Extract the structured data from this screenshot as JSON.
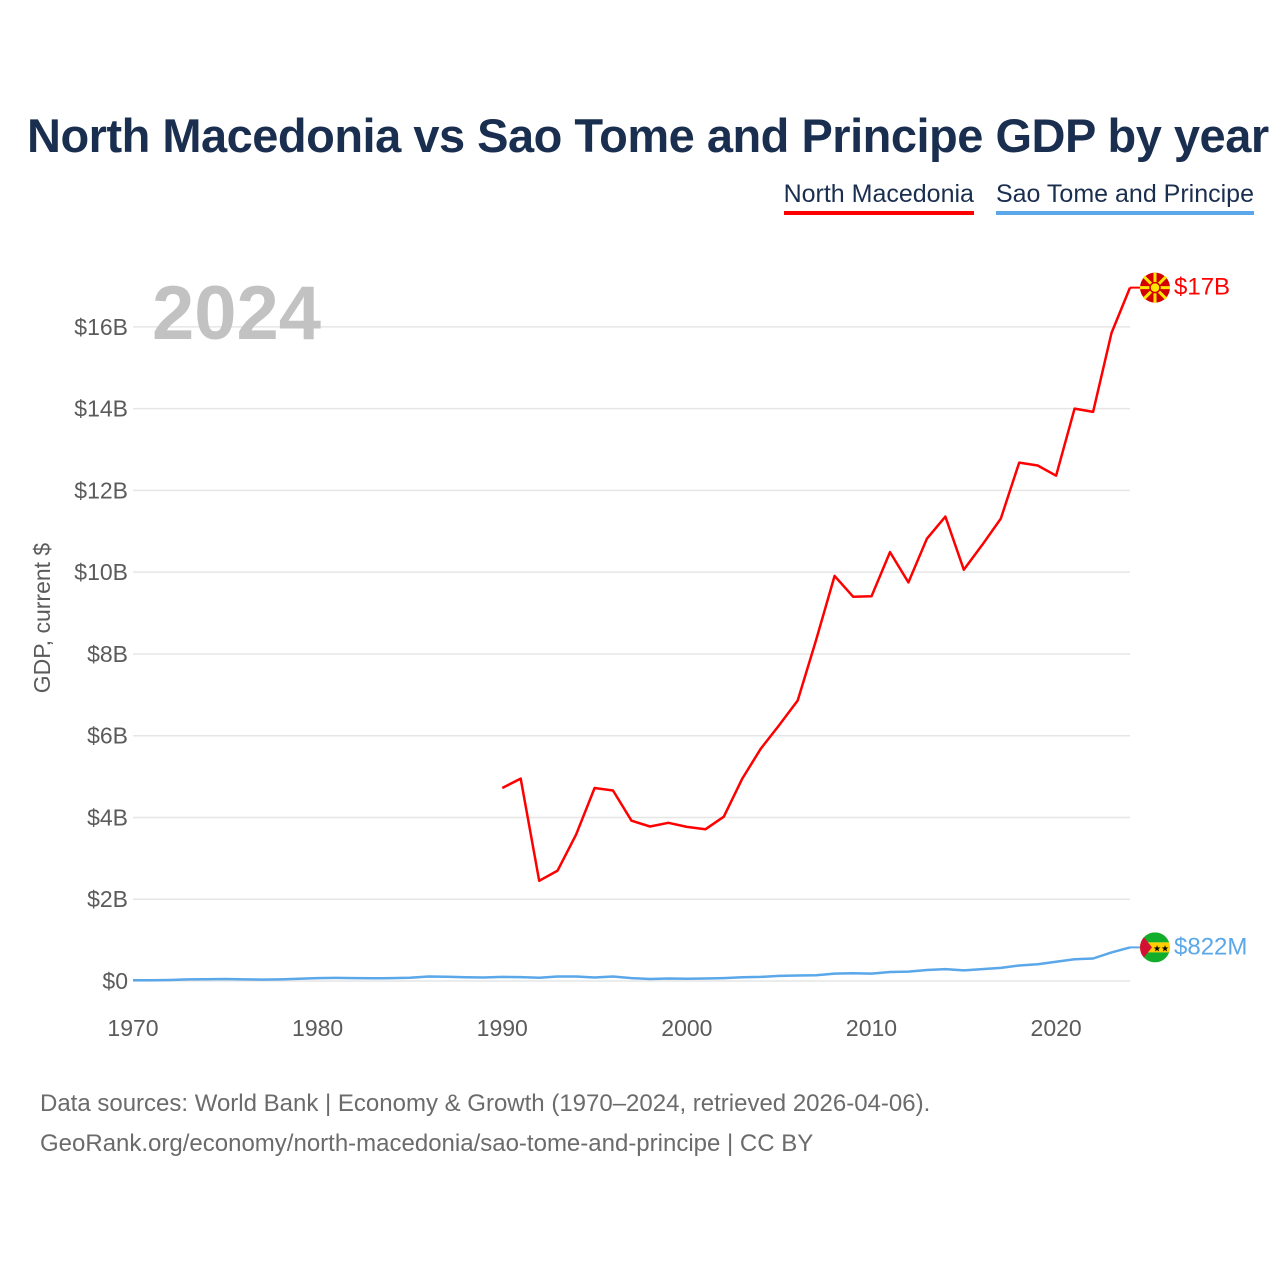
{
  "title": "North Macedonia vs Sao Tome and Principe GDP by year",
  "legend": [
    {
      "name": "North Macedonia",
      "color": "#ff0000"
    },
    {
      "name": "Sao Tome and Principe",
      "color": "#5aa7e9"
    }
  ],
  "year_watermark": "2024",
  "end_labels": {
    "north_macedonia": "$17B",
    "sao_tome": "$822M"
  },
  "source_line1": "Data sources: World Bank | Economy & Growth (1970–2024, retrieved 2026-04-06).",
  "source_line2": "GeoRank.org/economy/north-macedonia/sao-tome-and-principe | CC BY",
  "chart_data": {
    "type": "line",
    "title": "North Macedonia vs Sao Tome and Principe GDP by year",
    "xlabel": "",
    "ylabel": "GDP, current $",
    "xlim": [
      1970,
      2024
    ],
    "ylim": [
      0,
      17
    ],
    "y_unit": "billions USD",
    "x_ticks": [
      1970,
      1980,
      1990,
      2000,
      2010,
      2020
    ],
    "y_ticks": [
      0,
      2,
      4,
      6,
      8,
      10,
      12,
      14,
      16
    ],
    "y_tick_labels": [
      "$0",
      "$2B",
      "$4B",
      "$6B",
      "$8B",
      "$10B",
      "$12B",
      "$14B",
      "$16B"
    ],
    "grid": true,
    "legend_position": "top-right",
    "series": [
      {
        "name": "North Macedonia",
        "color": "#ff0000",
        "x": [
          1990,
          1991,
          1992,
          1993,
          1994,
          1995,
          1996,
          1997,
          1998,
          1999,
          2000,
          2001,
          2002,
          2003,
          2004,
          2005,
          2006,
          2007,
          2008,
          2009,
          2010,
          2011,
          2012,
          2013,
          2014,
          2015,
          2016,
          2017,
          2018,
          2019,
          2020,
          2021,
          2022,
          2023,
          2024
        ],
        "values": [
          4.72,
          4.95,
          2.45,
          2.7,
          3.58,
          4.72,
          4.66,
          3.92,
          3.78,
          3.87,
          3.77,
          3.71,
          4.02,
          4.95,
          5.68,
          6.26,
          6.86,
          8.34,
          9.91,
          9.4,
          9.41,
          10.49,
          9.75,
          10.82,
          11.36,
          10.06,
          10.67,
          11.31,
          12.68,
          12.61,
          12.36,
          14.0,
          13.92,
          15.85,
          16.96
        ]
      },
      {
        "name": "Sao Tome and Principe",
        "color": "#5aa7e9",
        "x": [
          1970,
          1971,
          1972,
          1973,
          1974,
          1975,
          1976,
          1977,
          1978,
          1979,
          1980,
          1981,
          1982,
          1983,
          1984,
          1985,
          1986,
          1987,
          1988,
          1989,
          1990,
          1991,
          1992,
          1993,
          1994,
          1995,
          1996,
          1997,
          1998,
          1999,
          2000,
          2001,
          2002,
          2003,
          2004,
          2005,
          2006,
          2007,
          2008,
          2009,
          2010,
          2011,
          2012,
          2013,
          2014,
          2015,
          2016,
          2017,
          2018,
          2019,
          2020,
          2021,
          2022,
          2023,
          2024
        ],
        "values": [
          0.02,
          0.02,
          0.025,
          0.04,
          0.045,
          0.05,
          0.04,
          0.035,
          0.04,
          0.055,
          0.07,
          0.075,
          0.07,
          0.065,
          0.07,
          0.08,
          0.11,
          0.105,
          0.09,
          0.085,
          0.1,
          0.095,
          0.08,
          0.11,
          0.11,
          0.085,
          0.11,
          0.07,
          0.05,
          0.06,
          0.055,
          0.06,
          0.07,
          0.09,
          0.1,
          0.125,
          0.135,
          0.14,
          0.18,
          0.19,
          0.18,
          0.22,
          0.23,
          0.27,
          0.29,
          0.26,
          0.29,
          0.32,
          0.38,
          0.41,
          0.47,
          0.53,
          0.55,
          0.7,
          0.822
        ]
      }
    ]
  }
}
